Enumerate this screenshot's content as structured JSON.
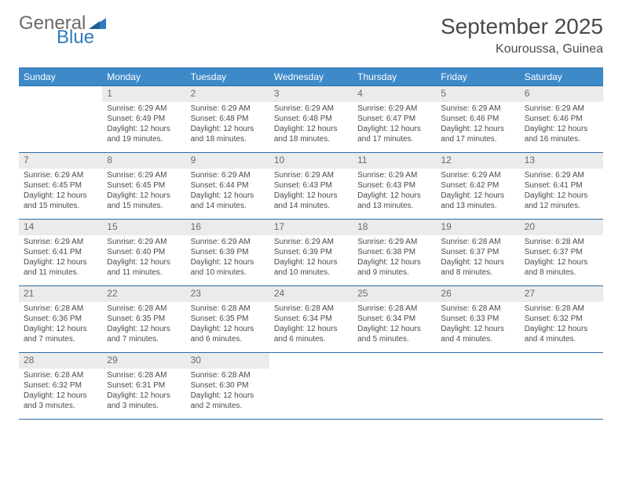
{
  "brand": {
    "word1": "General",
    "word2": "Blue",
    "logo_color": "#2f7bbf",
    "text_color": "#6a6a6a"
  },
  "title": "September 2025",
  "location": "Kouroussa, Guinea",
  "colors": {
    "header_bg": "#3e8ac9",
    "header_border": "#2a6da6",
    "daynum_bg": "#ebebeb",
    "text": "#4a4a4a"
  },
  "day_headers": [
    "Sunday",
    "Monday",
    "Tuesday",
    "Wednesday",
    "Thursday",
    "Friday",
    "Saturday"
  ],
  "weeks": [
    [
      {
        "n": "",
        "sr": "",
        "ss": "",
        "dl": ""
      },
      {
        "n": "1",
        "sr": "Sunrise: 6:29 AM",
        "ss": "Sunset: 6:49 PM",
        "dl": "Daylight: 12 hours and 19 minutes."
      },
      {
        "n": "2",
        "sr": "Sunrise: 6:29 AM",
        "ss": "Sunset: 6:48 PM",
        "dl": "Daylight: 12 hours and 18 minutes."
      },
      {
        "n": "3",
        "sr": "Sunrise: 6:29 AM",
        "ss": "Sunset: 6:48 PM",
        "dl": "Daylight: 12 hours and 18 minutes."
      },
      {
        "n": "4",
        "sr": "Sunrise: 6:29 AM",
        "ss": "Sunset: 6:47 PM",
        "dl": "Daylight: 12 hours and 17 minutes."
      },
      {
        "n": "5",
        "sr": "Sunrise: 6:29 AM",
        "ss": "Sunset: 6:46 PM",
        "dl": "Daylight: 12 hours and 17 minutes."
      },
      {
        "n": "6",
        "sr": "Sunrise: 6:29 AM",
        "ss": "Sunset: 6:46 PM",
        "dl": "Daylight: 12 hours and 16 minutes."
      }
    ],
    [
      {
        "n": "7",
        "sr": "Sunrise: 6:29 AM",
        "ss": "Sunset: 6:45 PM",
        "dl": "Daylight: 12 hours and 15 minutes."
      },
      {
        "n": "8",
        "sr": "Sunrise: 6:29 AM",
        "ss": "Sunset: 6:45 PM",
        "dl": "Daylight: 12 hours and 15 minutes."
      },
      {
        "n": "9",
        "sr": "Sunrise: 6:29 AM",
        "ss": "Sunset: 6:44 PM",
        "dl": "Daylight: 12 hours and 14 minutes."
      },
      {
        "n": "10",
        "sr": "Sunrise: 6:29 AM",
        "ss": "Sunset: 6:43 PM",
        "dl": "Daylight: 12 hours and 14 minutes."
      },
      {
        "n": "11",
        "sr": "Sunrise: 6:29 AM",
        "ss": "Sunset: 6:43 PM",
        "dl": "Daylight: 12 hours and 13 minutes."
      },
      {
        "n": "12",
        "sr": "Sunrise: 6:29 AM",
        "ss": "Sunset: 6:42 PM",
        "dl": "Daylight: 12 hours and 13 minutes."
      },
      {
        "n": "13",
        "sr": "Sunrise: 6:29 AM",
        "ss": "Sunset: 6:41 PM",
        "dl": "Daylight: 12 hours and 12 minutes."
      }
    ],
    [
      {
        "n": "14",
        "sr": "Sunrise: 6:29 AM",
        "ss": "Sunset: 6:41 PM",
        "dl": "Daylight: 12 hours and 11 minutes."
      },
      {
        "n": "15",
        "sr": "Sunrise: 6:29 AM",
        "ss": "Sunset: 6:40 PM",
        "dl": "Daylight: 12 hours and 11 minutes."
      },
      {
        "n": "16",
        "sr": "Sunrise: 6:29 AM",
        "ss": "Sunset: 6:39 PM",
        "dl": "Daylight: 12 hours and 10 minutes."
      },
      {
        "n": "17",
        "sr": "Sunrise: 6:29 AM",
        "ss": "Sunset: 6:39 PM",
        "dl": "Daylight: 12 hours and 10 minutes."
      },
      {
        "n": "18",
        "sr": "Sunrise: 6:29 AM",
        "ss": "Sunset: 6:38 PM",
        "dl": "Daylight: 12 hours and 9 minutes."
      },
      {
        "n": "19",
        "sr": "Sunrise: 6:28 AM",
        "ss": "Sunset: 6:37 PM",
        "dl": "Daylight: 12 hours and 8 minutes."
      },
      {
        "n": "20",
        "sr": "Sunrise: 6:28 AM",
        "ss": "Sunset: 6:37 PM",
        "dl": "Daylight: 12 hours and 8 minutes."
      }
    ],
    [
      {
        "n": "21",
        "sr": "Sunrise: 6:28 AM",
        "ss": "Sunset: 6:36 PM",
        "dl": "Daylight: 12 hours and 7 minutes."
      },
      {
        "n": "22",
        "sr": "Sunrise: 6:28 AM",
        "ss": "Sunset: 6:35 PM",
        "dl": "Daylight: 12 hours and 7 minutes."
      },
      {
        "n": "23",
        "sr": "Sunrise: 6:28 AM",
        "ss": "Sunset: 6:35 PM",
        "dl": "Daylight: 12 hours and 6 minutes."
      },
      {
        "n": "24",
        "sr": "Sunrise: 6:28 AM",
        "ss": "Sunset: 6:34 PM",
        "dl": "Daylight: 12 hours and 6 minutes."
      },
      {
        "n": "25",
        "sr": "Sunrise: 6:28 AM",
        "ss": "Sunset: 6:34 PM",
        "dl": "Daylight: 12 hours and 5 minutes."
      },
      {
        "n": "26",
        "sr": "Sunrise: 6:28 AM",
        "ss": "Sunset: 6:33 PM",
        "dl": "Daylight: 12 hours and 4 minutes."
      },
      {
        "n": "27",
        "sr": "Sunrise: 6:28 AM",
        "ss": "Sunset: 6:32 PM",
        "dl": "Daylight: 12 hours and 4 minutes."
      }
    ],
    [
      {
        "n": "28",
        "sr": "Sunrise: 6:28 AM",
        "ss": "Sunset: 6:32 PM",
        "dl": "Daylight: 12 hours and 3 minutes."
      },
      {
        "n": "29",
        "sr": "Sunrise: 6:28 AM",
        "ss": "Sunset: 6:31 PM",
        "dl": "Daylight: 12 hours and 3 minutes."
      },
      {
        "n": "30",
        "sr": "Sunrise: 6:28 AM",
        "ss": "Sunset: 6:30 PM",
        "dl": "Daylight: 12 hours and 2 minutes."
      },
      {
        "n": "",
        "sr": "",
        "ss": "",
        "dl": ""
      },
      {
        "n": "",
        "sr": "",
        "ss": "",
        "dl": ""
      },
      {
        "n": "",
        "sr": "",
        "ss": "",
        "dl": ""
      },
      {
        "n": "",
        "sr": "",
        "ss": "",
        "dl": ""
      }
    ]
  ]
}
